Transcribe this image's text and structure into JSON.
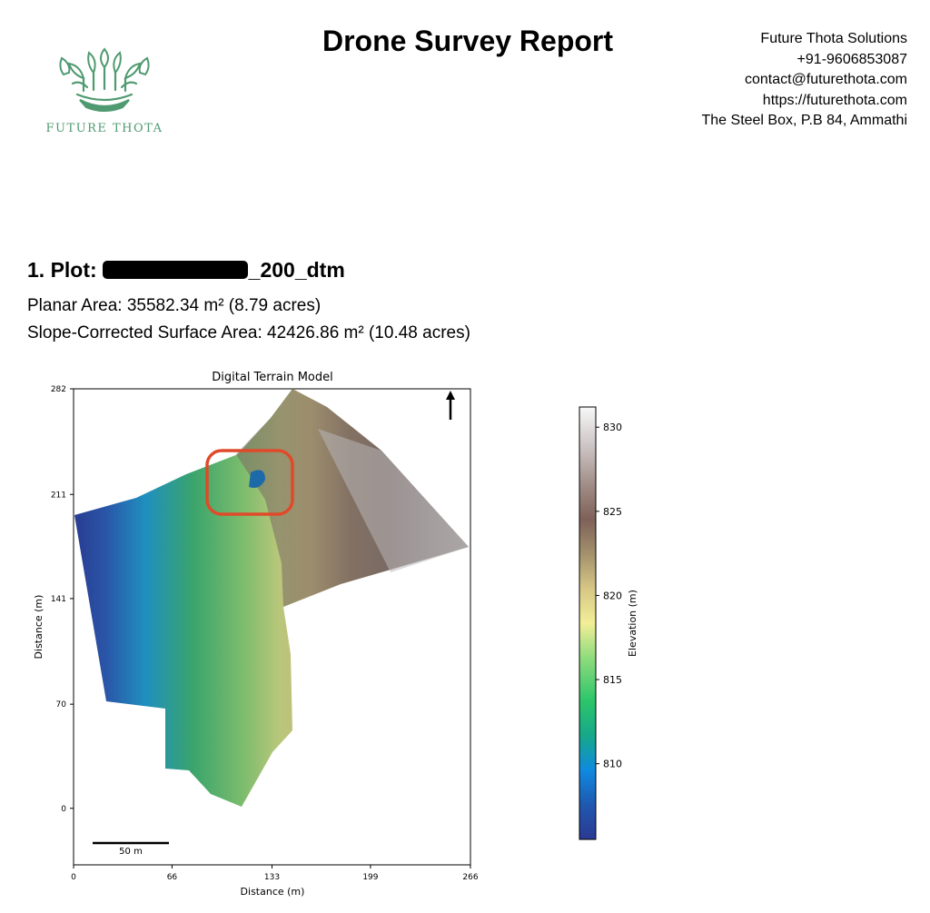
{
  "header": {
    "report_title": "Drone Survey Report",
    "logo": {
      "name": "FUTURE THOTA",
      "brand_color": "#4f9a70",
      "icon": "sprouting-leaves-bowl-icon"
    },
    "company": {
      "name": "Future Thota Solutions",
      "phone": "+91-9606853087",
      "email": "contact@futurethota.com",
      "website": "https://futurethota.com",
      "address": "The Steel Box, P.B 84, Ammathi"
    }
  },
  "plot": {
    "heading_prefix": "1. Plot:",
    "heading_suffix": "_200_dtm",
    "heading_redacted": true,
    "planar_area": "Planar Area: 35582.34 m² (8.79 acres)",
    "surface_area": "Slope-Corrected Surface Area: 42426.86 m² (10.48 acres)"
  },
  "figure": {
    "title": "Digital Terrain Model",
    "xlabel": "Distance (m)",
    "ylabel": "Distance (m)",
    "x_ticks": [
      "0",
      "66",
      "133",
      "199",
      "266"
    ],
    "y_ticks": [
      "282",
      "211",
      "141",
      "70",
      "0"
    ],
    "scale_bar_label": "50 m",
    "north_arrow": "north-arrow-icon",
    "highlight_color": "#e04a2a",
    "colorbar": {
      "label": "Elevation (m)",
      "ticks": [
        "830",
        "825",
        "820",
        "815",
        "810"
      ],
      "range": [
        805.5,
        831.2
      ]
    }
  },
  "chart_data": {
    "type": "heatmap",
    "title": "Digital Terrain Model",
    "xlabel": "Distance (m)",
    "ylabel": "Distance (m)",
    "xlim": [
      0,
      266
    ],
    "ylim": [
      -38,
      282
    ],
    "x_ticks": [
      0,
      66,
      133,
      199,
      266
    ],
    "y_ticks": [
      0,
      70,
      141,
      211,
      282
    ],
    "colorbar_label": "Elevation (m)",
    "colorbar_ticks": [
      810,
      815,
      820,
      825,
      830
    ],
    "value_range": [
      805.5,
      831.2
    ],
    "colormap": "terrain",
    "legend_position": "right"
  }
}
